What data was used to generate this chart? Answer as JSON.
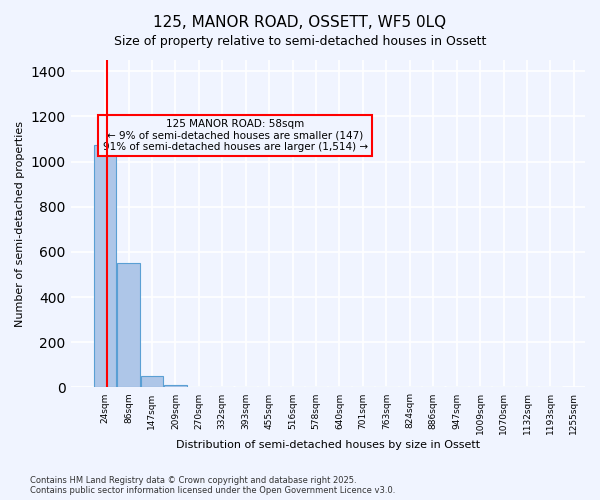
{
  "title": "125, MANOR ROAD, OSSETT, WF5 0LQ",
  "subtitle": "Size of property relative to semi-detached houses in Ossett",
  "xlabel": "Distribution of semi-detached houses by size in Ossett",
  "ylabel": "Number of semi-detached properties",
  "footer1": "Contains HM Land Registry data © Crown copyright and database right 2025.",
  "footer2": "Contains public sector information licensed under the Open Government Licence v3.0.",
  "bin_labels": [
    "24sqm",
    "86sqm",
    "147sqm",
    "209sqm",
    "270sqm",
    "332sqm",
    "393sqm",
    "455sqm",
    "516sqm",
    "578sqm",
    "640sqm",
    "701sqm",
    "763sqm",
    "824sqm",
    "886sqm",
    "947sqm",
    "1009sqm",
    "1070sqm",
    "1132sqm",
    "1193sqm",
    "1255sqm"
  ],
  "bar_values": [
    1075,
    550,
    50,
    10,
    3,
    1,
    0,
    0,
    0,
    0,
    0,
    0,
    0,
    0,
    0,
    0,
    0,
    0,
    0,
    0
  ],
  "bar_color": "#aec6e8",
  "bar_edge_color": "#5a9fd4",
  "property_size": 58,
  "property_label": "125 MANOR ROAD: 58sqm",
  "pct_smaller": 9,
  "count_smaller": 147,
  "pct_larger": 91,
  "count_larger": 1514,
  "vline_color": "red",
  "annotation_box_color": "red",
  "annotation_text_color": "black",
  "ylim": [
    0,
    1450
  ],
  "background_color": "#f0f4ff",
  "grid_color": "white"
}
